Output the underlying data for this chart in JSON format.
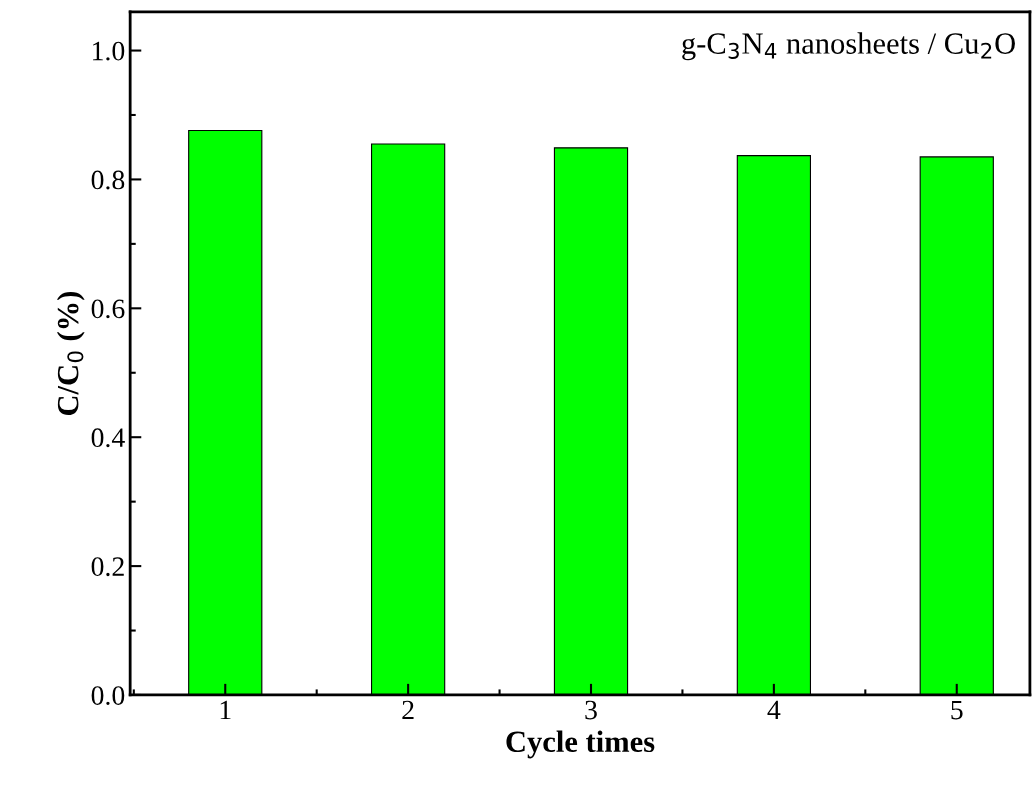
{
  "chart_data": {
    "type": "bar",
    "xlabel": "Cycle times",
    "ylabel": "C/C$_{0}$ (%)",
    "categories": [
      "1",
      "2",
      "3",
      "4",
      "5"
    ],
    "values": [
      0.876,
      0.855,
      0.849,
      0.837,
      0.835
    ],
    "color": "#00ff00",
    "ylim": [
      0,
      1.06
    ],
    "yticks": [
      {
        "value": 0,
        "label": "0.0"
      },
      {
        "value": 0.2,
        "label": "0.2"
      },
      {
        "value": 0.4,
        "label": "0.4"
      },
      {
        "value": 0.6,
        "label": "0.6"
      },
      {
        "value": 0.8,
        "label": "0.8"
      },
      {
        "value": 1.0,
        "label": "1.0"
      }
    ],
    "grid": false,
    "annotations": [
      "g-C$_{3}$N$_{4}$ nanosheets / Cu$_{2}$O"
    ]
  }
}
